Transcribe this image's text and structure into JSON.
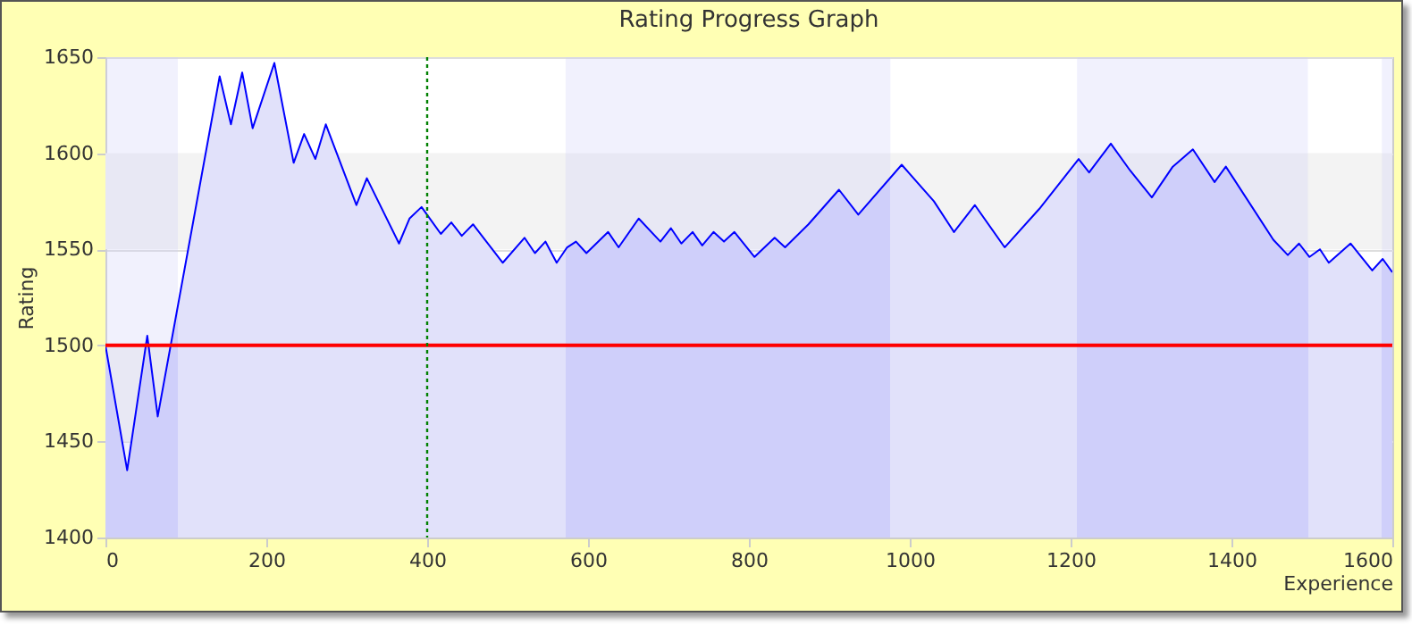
{
  "chart_data": {
    "type": "area",
    "title": "Rating Progress Graph",
    "xlabel": "Experience",
    "ylabel": "Rating",
    "xlim": [
      0,
      1600
    ],
    "ylim": [
      1400,
      1650
    ],
    "xticks": [
      0,
      200,
      400,
      600,
      800,
      1000,
      1200,
      1400,
      1600
    ],
    "yticks": [
      1400,
      1450,
      1500,
      1550,
      1600,
      1650
    ],
    "grid": "y",
    "series": [
      {
        "color": "#0000ff",
        "x": [
          0,
          27,
          52,
          65,
          142,
          156,
          170,
          183,
          210,
          234,
          247,
          261,
          274,
          312,
          325,
          365,
          378,
          393,
          417,
          430,
          443,
          457,
          494,
          521,
          534,
          547,
          561,
          574,
          585,
          598,
          625,
          638,
          663,
          690,
          703,
          716,
          730,
          742,
          756,
          769,
          782,
          807,
          832,
          845,
          874,
          912,
          936,
          990,
          1030,
          1055,
          1081,
          1118,
          1161,
          1210,
          1223,
          1250,
          1274,
          1301,
          1327,
          1352,
          1379,
          1393,
          1452,
          1470,
          1484,
          1497,
          1510,
          1521,
          1548,
          1575,
          1588,
          1600
        ],
        "values": [
          1500,
          1435,
          1505,
          1463,
          1640,
          1615,
          1642,
          1613,
          1647,
          1595,
          1610,
          1597,
          1615,
          1573,
          1587,
          1553,
          1566,
          1572,
          1558,
          1564,
          1557,
          1563,
          1543,
          1556,
          1548,
          1554,
          1543,
          1551,
          1554,
          1548,
          1559,
          1551,
          1566,
          1554,
          1561,
          1553,
          1559,
          1552,
          1559,
          1554,
          1559,
          1546,
          1556,
          1551,
          1563,
          1581,
          1568,
          1594,
          1575,
          1559,
          1573,
          1551,
          1571,
          1597,
          1590,
          1605,
          1591,
          1577,
          1593,
          1602,
          1585,
          1593,
          1555,
          1547,
          1553,
          1546,
          1550,
          1543,
          1553,
          1539,
          1545,
          1538
        ]
      }
    ],
    "bands": [
      {
        "axis": "y",
        "from": 1450,
        "to": 1500,
        "color": "#f3f3f3"
      },
      {
        "axis": "y",
        "from": 1550,
        "to": 1600,
        "color": "#f3f3f3"
      },
      {
        "axis": "x",
        "from": 0,
        "to": 90,
        "color": "#cfcffa"
      },
      {
        "axis": "x",
        "from": 572,
        "to": 976,
        "color": "#cfcffa"
      },
      {
        "axis": "x",
        "from": 1208,
        "to": 1495,
        "color": "#cfcffa"
      },
      {
        "axis": "x",
        "from": 1587,
        "to": 1600,
        "color": "#cfcffa"
      }
    ],
    "ref_lines": [
      {
        "axis": "y",
        "value": 1500,
        "color": "#ff0000",
        "line_style": "solid"
      },
      {
        "axis": "x",
        "value": 400,
        "color": "#008000",
        "line_style": "dotted"
      }
    ]
  }
}
